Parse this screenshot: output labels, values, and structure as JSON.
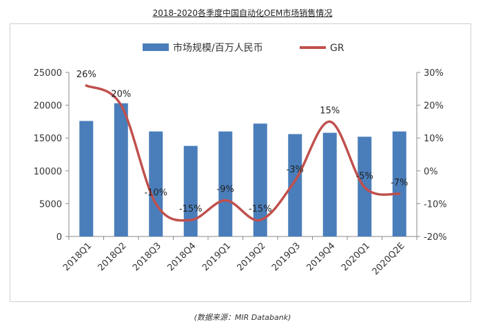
{
  "page_title": "2018-2020各季度中国自动化OEM市场销售情况",
  "source_note": "(数据来源：MIR Databank)",
  "chart_data": {
    "type": "bar+line",
    "categories": [
      "2018Q1",
      "2018Q2",
      "2018Q3",
      "2018Q4",
      "2019Q1",
      "2019Q2",
      "2019Q3",
      "2019Q4",
      "2020Q1",
      "2020Q2E"
    ],
    "series": [
      {
        "name": "市场规模/百万人民币",
        "type": "bar",
        "axis": "left",
        "values": [
          17600,
          20300,
          16000,
          13800,
          16000,
          17200,
          15600,
          15800,
          15200,
          16000
        ]
      },
      {
        "name": "GR",
        "type": "line",
        "axis": "right",
        "values": [
          26,
          20,
          -10,
          -15,
          -9,
          -15,
          -3,
          15,
          -5,
          -7
        ]
      }
    ],
    "data_labels": [
      "26%",
      "20%",
      "-10%",
      "-15%",
      "-9%",
      "-15%",
      "-3%",
      "15%",
      "-5%",
      "-7%"
    ],
    "left_axis": {
      "ylim": [
        0,
        25000
      ],
      "ticks": [
        "0",
        "5000",
        "10000",
        "15000",
        "20000",
        "25000"
      ]
    },
    "right_axis": {
      "ylim": [
        -20,
        30
      ],
      "ticks": [
        "-20%",
        "-10%",
        "0%",
        "10%",
        "20%",
        "30%"
      ]
    },
    "legend_position": "top",
    "colors": {
      "bar": "#4a7ebb",
      "line": "#c0504d"
    },
    "grid": false
  }
}
